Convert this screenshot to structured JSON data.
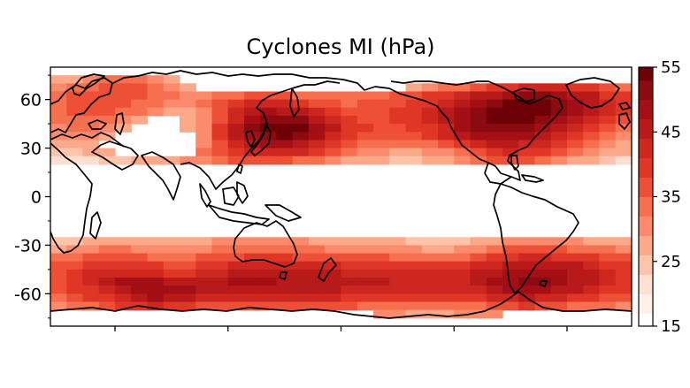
{
  "chart_data": {
    "type": "heatmap",
    "title": "Cyclones MI (hPa)",
    "map": "world coastlines, Pacific-centered plate carree",
    "xlim": [
      20,
      380
    ],
    "ylim": [
      -80,
      80
    ],
    "yticks": [
      60,
      30,
      0,
      -30,
      -60
    ],
    "xticks_unlabeled": [
      60,
      130,
      200,
      270,
      340
    ],
    "colorbar": {
      "label_ticks": [
        55,
        45,
        35,
        25,
        15
      ],
      "range": [
        15,
        55
      ],
      "levels": [
        15,
        17,
        20,
        23,
        26,
        29,
        32,
        35,
        38,
        41,
        44,
        47,
        50,
        53,
        56
      ],
      "colors": [
        "#ffffff",
        "#fff0ea",
        "#fde0d2",
        "#fcc4ab",
        "#fca98a",
        "#fb8b6c",
        "#f6704f",
        "#ee5037",
        "#e03626",
        "#cd271f",
        "#b81a19",
        "#a30f14",
        "#8c0b10",
        "#6e0008"
      ]
    },
    "cells_note": "gridded field of mean intensity (hPa) at 10° longitude x 5° latitude resolution; white = no data",
    "lon_centers": [
      25,
      35,
      45,
      55,
      65,
      75,
      85,
      95,
      105,
      115,
      125,
      135,
      145,
      155,
      165,
      175,
      185,
      195,
      205,
      215,
      225,
      235,
      245,
      255,
      265,
      275,
      285,
      295,
      305,
      315,
      325,
      335,
      345,
      355,
      365,
      375
    ],
    "lat_centers": [
      72.5,
      67.5,
      62.5,
      57.5,
      52.5,
      47.5,
      42.5,
      37.5,
      32.5,
      27.5,
      22.5,
      -22.5,
      -27.5,
      -32.5,
      -37.5,
      -42.5,
      -47.5,
      -52.5,
      -57.5,
      -62.5,
      -67.5,
      -72.5
    ],
    "values": [
      [
        26,
        28,
        30,
        33,
        34,
        33,
        30,
        26,
        0,
        0,
        0,
        0,
        0,
        0,
        0,
        0,
        0,
        0,
        0,
        0,
        0,
        0,
        0,
        0,
        0,
        0,
        0,
        0,
        0,
        0,
        0,
        0,
        0,
        0,
        0,
        0
      ],
      [
        30,
        32,
        34,
        35,
        36,
        35,
        33,
        30,
        28,
        0,
        0,
        0,
        0,
        0,
        0,
        0,
        0,
        0,
        0,
        0,
        0,
        0,
        28,
        30,
        32,
        34,
        36,
        38,
        40,
        41,
        42,
        42,
        40,
        38,
        36,
        34
      ],
      [
        33,
        35,
        36,
        37,
        37,
        36,
        34,
        32,
        30,
        30,
        32,
        34,
        36,
        36,
        35,
        34,
        33,
        32,
        32,
        33,
        34,
        35,
        36,
        38,
        40,
        42,
        44,
        46,
        48,
        50,
        50,
        48,
        46,
        44,
        40,
        38
      ],
      [
        34,
        36,
        36,
        37,
        36,
        34,
        32,
        30,
        30,
        33,
        36,
        39,
        41,
        42,
        41,
        39,
        37,
        35,
        34,
        35,
        36,
        37,
        38,
        40,
        43,
        46,
        49,
        51,
        53,
        54,
        53,
        51,
        48,
        45,
        42,
        40
      ],
      [
        33,
        35,
        36,
        35,
        34,
        32,
        29,
        26,
        27,
        31,
        36,
        41,
        45,
        47,
        46,
        44,
        41,
        38,
        36,
        36,
        37,
        38,
        39,
        41,
        44,
        47,
        50,
        53,
        55,
        55,
        54,
        51,
        48,
        45,
        42,
        39
      ],
      [
        32,
        34,
        34,
        33,
        31,
        28,
        0,
        0,
        26,
        31,
        37,
        43,
        48,
        52,
        52,
        50,
        46,
        42,
        38,
        37,
        37,
        38,
        39,
        41,
        44,
        48,
        51,
        53,
        54,
        53,
        51,
        48,
        45,
        42,
        39,
        36
      ],
      [
        31,
        33,
        33,
        31,
        28,
        0,
        0,
        0,
        26,
        31,
        38,
        45,
        50,
        54,
        55,
        53,
        49,
        44,
        40,
        38,
        37,
        37,
        38,
        40,
        43,
        47,
        50,
        52,
        52,
        50,
        48,
        45,
        42,
        39,
        36,
        33
      ],
      [
        29,
        31,
        31,
        28,
        0,
        0,
        0,
        0,
        0,
        31,
        38,
        44,
        49,
        52,
        53,
        51,
        47,
        43,
        39,
        37,
        35,
        35,
        36,
        38,
        41,
        45,
        48,
        49,
        49,
        47,
        45,
        42,
        39,
        36,
        33,
        30
      ],
      [
        27,
        28,
        28,
        0,
        0,
        0,
        0,
        0,
        0,
        31,
        37,
        42,
        46,
        48,
        48,
        46,
        43,
        39,
        36,
        34,
        32,
        32,
        33,
        34,
        36,
        39,
        43,
        45,
        45,
        43,
        41,
        38,
        35,
        33,
        30,
        28
      ],
      [
        24,
        25,
        26,
        27,
        0,
        0,
        0,
        0,
        0,
        32,
        36,
        39,
        42,
        43,
        43,
        41,
        38,
        35,
        33,
        31,
        29,
        28,
        28,
        29,
        31,
        34,
        37,
        40,
        41,
        40,
        38,
        35,
        32,
        30,
        28,
        26
      ],
      [
        20,
        21,
        22,
        24,
        25,
        26,
        27,
        28,
        29,
        31,
        33,
        35,
        36,
        37,
        36,
        34,
        32,
        30,
        28,
        27,
        26,
        25,
        25,
        26,
        27,
        29,
        32,
        35,
        36,
        35,
        33,
        30,
        28,
        26,
        24,
        22
      ],
      [
        0,
        0,
        0,
        0,
        0,
        0,
        0,
        0,
        0,
        0,
        0,
        0,
        0,
        0,
        0,
        0,
        0,
        0,
        0,
        0,
        0,
        0,
        0,
        0,
        0,
        0,
        0,
        0,
        0,
        0,
        0,
        0,
        0,
        0,
        0,
        0
      ],
      [
        24,
        25,
        26,
        27,
        28,
        28,
        27,
        27,
        27,
        28,
        29,
        30,
        30,
        30,
        29,
        29,
        28,
        28,
        27,
        27,
        26,
        26,
        25,
        25,
        24,
        25,
        26,
        28,
        30,
        31,
        31,
        30,
        29,
        28,
        27,
        26
      ],
      [
        28,
        30,
        31,
        32,
        32,
        31,
        31,
        30,
        30,
        31,
        32,
        33,
        33,
        33,
        33,
        32,
        32,
        31,
        31,
        30,
        30,
        29,
        29,
        28,
        28,
        29,
        31,
        33,
        35,
        36,
        36,
        35,
        34,
        33,
        32,
        31
      ],
      [
        32,
        34,
        35,
        36,
        36,
        35,
        34,
        34,
        34,
        35,
        36,
        37,
        38,
        38,
        38,
        37,
        37,
        36,
        36,
        35,
        35,
        34,
        34,
        33,
        33,
        34,
        36,
        38,
        40,
        41,
        41,
        40,
        39,
        38,
        37,
        35
      ],
      [
        35,
        37,
        39,
        40,
        40,
        39,
        38,
        37,
        37,
        38,
        40,
        41,
        42,
        42,
        42,
        42,
        41,
        41,
        40,
        40,
        39,
        39,
        38,
        38,
        38,
        39,
        41,
        43,
        45,
        46,
        46,
        45,
        44,
        42,
        40,
        38
      ],
      [
        37,
        39,
        41,
        43,
        43,
        42,
        41,
        40,
        40,
        41,
        43,
        44,
        45,
        45,
        45,
        45,
        44,
        44,
        43,
        43,
        42,
        42,
        41,
        41,
        41,
        42,
        44,
        46,
        48,
        49,
        49,
        48,
        46,
        44,
        42,
        40
      ],
      [
        37,
        40,
        42,
        45,
        47,
        48,
        47,
        46,
        45,
        46,
        46,
        47,
        47,
        47,
        46,
        46,
        45,
        45,
        44,
        44,
        44,
        43,
        43,
        42,
        42,
        43,
        45,
        47,
        49,
        50,
        50,
        48,
        46,
        44,
        42,
        40
      ],
      [
        36,
        38,
        40,
        43,
        46,
        48,
        49,
        48,
        47,
        46,
        46,
        46,
        46,
        45,
        45,
        44,
        44,
        44,
        43,
        43,
        43,
        42,
        42,
        41,
        41,
        42,
        43,
        45,
        47,
        48,
        47,
        46,
        44,
        42,
        40,
        38
      ],
      [
        34,
        36,
        38,
        40,
        43,
        45,
        47,
        46,
        44,
        43,
        43,
        43,
        43,
        42,
        42,
        41,
        41,
        41,
        40,
        40,
        40,
        39,
        39,
        38,
        38,
        39,
        40,
        42,
        43,
        44,
        43,
        42,
        40,
        38,
        37,
        35
      ],
      [
        30,
        32,
        34,
        36,
        38,
        40,
        41,
        40,
        38,
        37,
        37,
        37,
        37,
        36,
        36,
        36,
        35,
        35,
        35,
        34,
        34,
        34,
        33,
        33,
        33,
        33,
        34,
        36,
        37,
        38,
        37,
        36,
        34,
        33,
        32,
        31
      ],
      [
        0,
        0,
        0,
        0,
        0,
        0,
        0,
        0,
        0,
        0,
        0,
        0,
        0,
        0,
        0,
        0,
        0,
        0,
        0,
        0,
        29,
        29,
        28,
        28,
        28,
        29,
        30,
        30,
        0,
        0,
        0,
        0,
        0,
        0,
        0,
        0
      ]
    ]
  }
}
